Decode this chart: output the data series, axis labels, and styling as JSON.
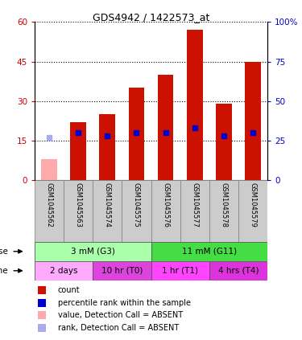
{
  "title": "GDS4942 / 1422573_at",
  "samples": [
    "GSM1045562",
    "GSM1045563",
    "GSM1045574",
    "GSM1045575",
    "GSM1045576",
    "GSM1045577",
    "GSM1045578",
    "GSM1045579"
  ],
  "count_values": [
    8,
    22,
    25,
    35,
    40,
    57,
    29,
    45
  ],
  "count_absent": [
    true,
    false,
    false,
    false,
    false,
    false,
    false,
    false
  ],
  "percentile_values": [
    27,
    30,
    28,
    30,
    30,
    33,
    28,
    30
  ],
  "percentile_absent": [
    true,
    false,
    false,
    false,
    false,
    false,
    false,
    false
  ],
  "ylim_left": [
    0,
    60
  ],
  "ylim_right": [
    0,
    100
  ],
  "yticks_left": [
    0,
    15,
    30,
    45,
    60
  ],
  "yticks_right": [
    0,
    25,
    50,
    75,
    100
  ],
  "ytick_labels_left": [
    "0",
    "15",
    "30",
    "45",
    "60"
  ],
  "ytick_labels_right": [
    "0",
    "25",
    "50",
    "75",
    "100%"
  ],
  "bar_color_normal": "#cc1100",
  "bar_color_absent": "#ffaaaa",
  "square_color_normal": "#0000cc",
  "square_color_absent": "#aaaaee",
  "dose_groups": [
    {
      "label": "3 mM (G3)",
      "start": 0,
      "end": 4,
      "color": "#aaffaa"
    },
    {
      "label": "11 mM (G11)",
      "start": 4,
      "end": 8,
      "color": "#44dd44"
    }
  ],
  "time_groups": [
    {
      "label": "2 days",
      "start": 0,
      "end": 2,
      "color": "#ffaaff"
    },
    {
      "label": "10 hr (T0)",
      "start": 2,
      "end": 4,
      "color": "#dd44dd"
    },
    {
      "label": "1 hr (T1)",
      "start": 4,
      "end": 6,
      "color": "#ff44ff"
    },
    {
      "label": "4 hrs (T4)",
      "start": 6,
      "end": 8,
      "color": "#dd33dd"
    }
  ],
  "axis_label_color_left": "#cc0000",
  "axis_label_color_right": "#0000cc",
  "background_color": "#ffffff",
  "grid_color": "#000000",
  "sample_box_color": "#cccccc",
  "sample_box_edge": "#888888"
}
